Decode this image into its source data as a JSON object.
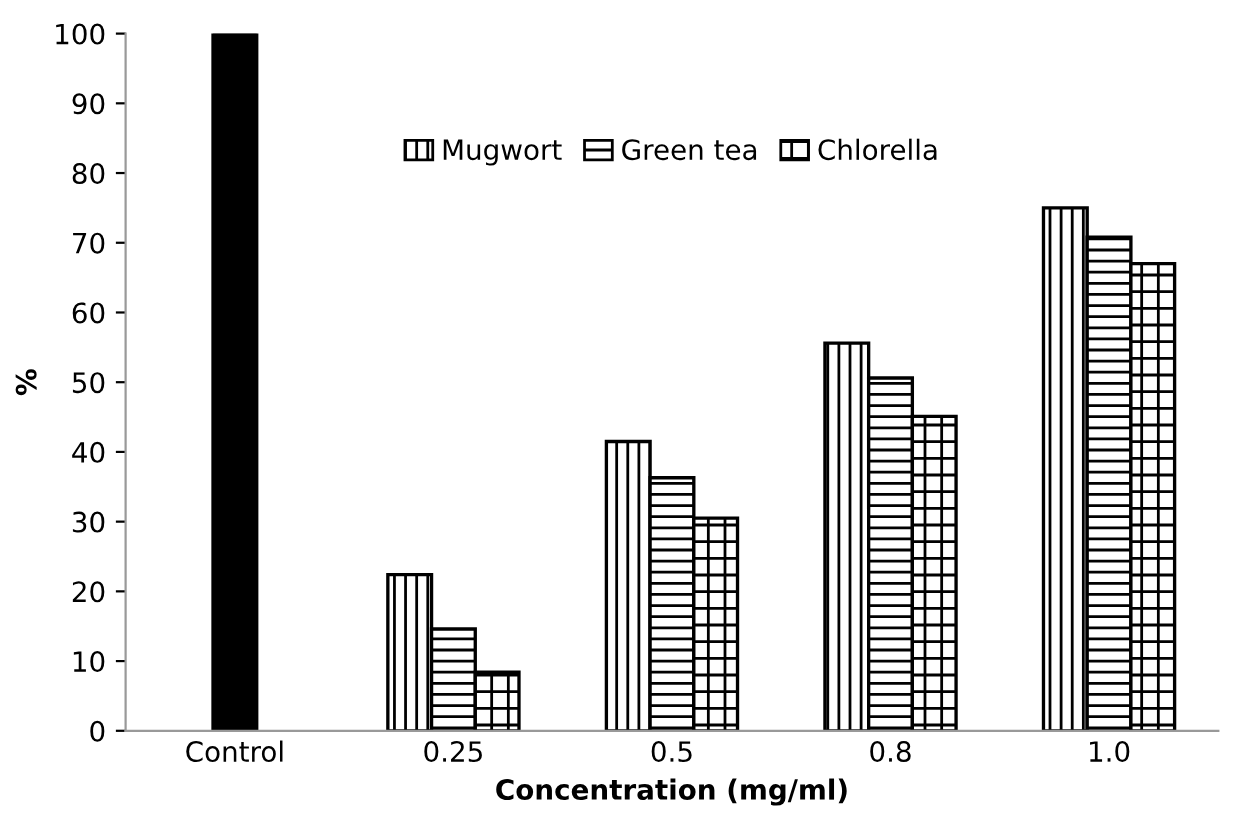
{
  "chart_data": {
    "type": "bar",
    "xlabel": "Concentration (mg/ml)",
    "ylabel": "%",
    "categories": [
      "Control",
      "0.25",
      "0.5",
      "0.8",
      "1.0"
    ],
    "series": [
      {
        "color": "#000000",
        "values": [
          100,
          null,
          null,
          null,
          null
        ]
      },
      {
        "name": "Mugwort",
        "color": "#000000",
        "values": [
          null,
          22.4,
          41.5,
          55.6,
          75.0
        ]
      },
      {
        "name": "Green tea",
        "color": "#000000",
        "values": [
          null,
          14.6,
          36.3,
          50.6,
          70.8
        ]
      },
      {
        "name": "Chlorella",
        "color": "#000000",
        "values": [
          null,
          8.4,
          30.5,
          45.1,
          67.0
        ]
      }
    ],
    "ylim": [
      0,
      100
    ],
    "yticks": [
      0,
      10,
      20,
      30,
      40,
      50,
      60,
      70,
      80,
      90,
      100
    ],
    "grid": false,
    "legend": "top"
  }
}
